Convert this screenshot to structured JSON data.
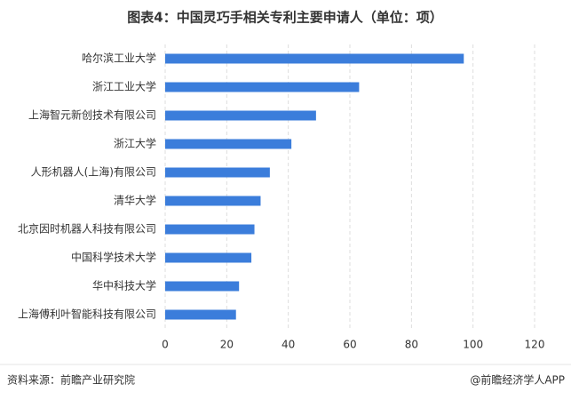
{
  "chart_data": {
    "type": "bar",
    "orientation": "horizontal",
    "title": "图表4：中国灵巧手相关专利主要申请人（单位：项）",
    "categories": [
      "哈尔滨工业大学",
      "浙江工业大学",
      "上海智元新创技术有限公司",
      "浙江大学",
      "人形机器人(上海)有限公司",
      "清华大学",
      "北京因时机器人科技有限公司",
      "中国科学技术大学",
      "华中科技大学",
      "上海傅利叶智能科技有限公司"
    ],
    "values": [
      97,
      63,
      49,
      41,
      34,
      31,
      29,
      28,
      24,
      23
    ],
    "color": "#3b7ddb",
    "xlim": [
      0,
      120
    ],
    "xticks": [
      0,
      20,
      40,
      60,
      80,
      100,
      120
    ],
    "grid": true,
    "source": "资料来源：前瞻产业研究院",
    "credit": "@前瞻经济学人APP"
  }
}
